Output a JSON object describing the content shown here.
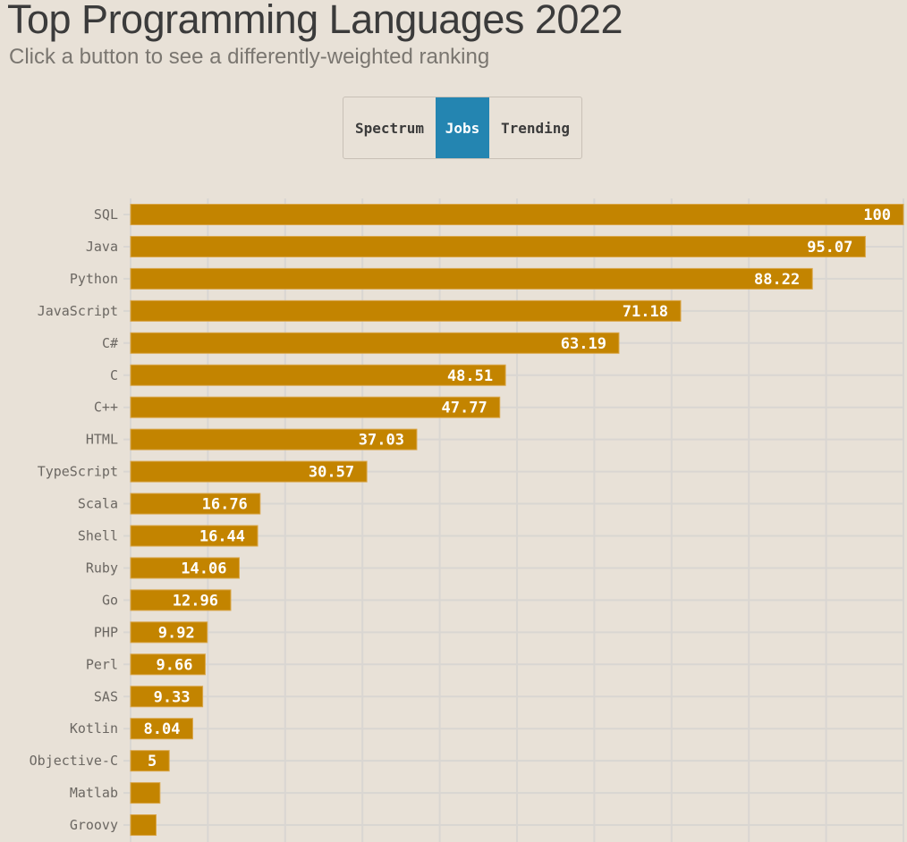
{
  "header": {
    "title": "Top Programming Languages 2022",
    "subtitle": "Click a button to see a differently-weighted ranking"
  },
  "controls": {
    "buttons": [
      {
        "label": "Spectrum",
        "active": false
      },
      {
        "label": "Jobs",
        "active": true
      },
      {
        "label": "Trending",
        "active": false
      }
    ],
    "active_color": "#2485b1"
  },
  "chart_data": {
    "type": "bar",
    "orientation": "horizontal",
    "title": "Top Programming Languages 2022",
    "ranking": "Jobs",
    "categories": [
      "SQL",
      "Java",
      "Python",
      "JavaScript",
      "C#",
      "C",
      "C++",
      "HTML",
      "TypeScript",
      "Scala",
      "Shell",
      "Ruby",
      "Go",
      "PHP",
      "Perl",
      "SAS",
      "Kotlin",
      "Objective-C",
      "Matlab",
      "Groovy"
    ],
    "values": [
      100,
      95.07,
      88.22,
      71.18,
      63.19,
      48.51,
      47.77,
      37.03,
      30.57,
      16.76,
      16.44,
      14.06,
      12.96,
      9.92,
      9.66,
      9.33,
      8.04,
      5,
      3.8,
      3.3
    ],
    "labels": [
      "100",
      "95.07",
      "88.22",
      "71.18",
      "63.19",
      "48.51",
      "47.77",
      "37.03",
      "30.57",
      "16.76",
      "16.44",
      "14.06",
      "12.96",
      "9.92",
      "9.66",
      "9.33",
      "8.04",
      "5",
      "",
      ""
    ],
    "xlim": [
      0,
      100
    ],
    "grid_step": 10,
    "grid": true,
    "bar_color": "#c38400",
    "grid_color": "#d9d6d2"
  }
}
